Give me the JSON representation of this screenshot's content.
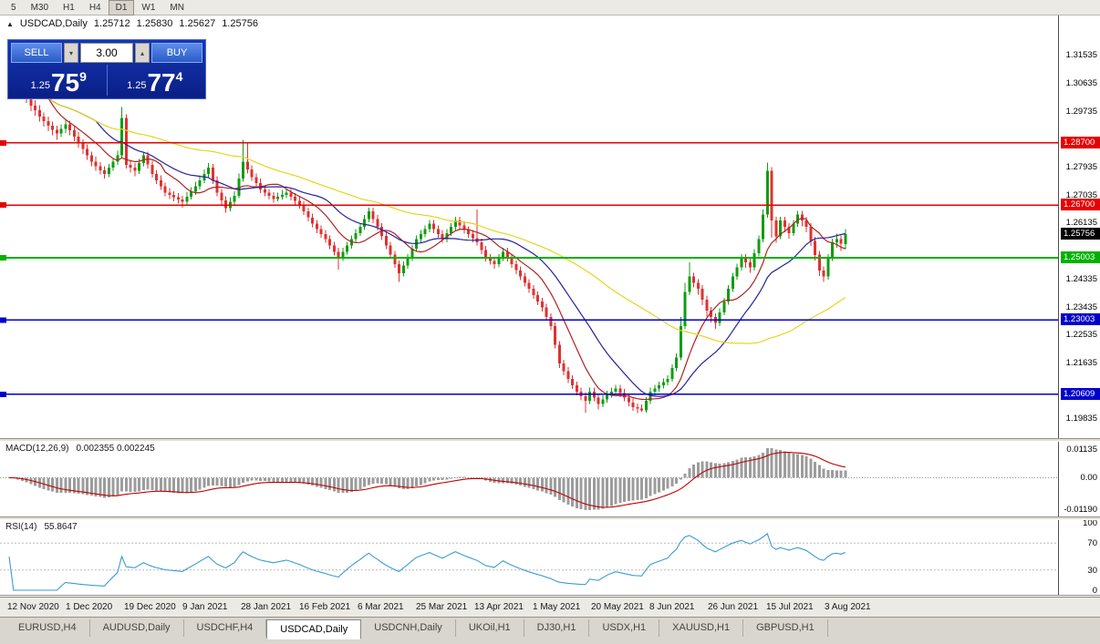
{
  "toolbar": {
    "periods": [
      "5",
      "M30",
      "H1",
      "H4",
      "D1",
      "W1",
      "MN"
    ],
    "active": "D1"
  },
  "chart": {
    "symbol_title": "USDCAD,Daily",
    "ohlc": {
      "open": "1.25712",
      "high": "1.25830",
      "low": "1.25627",
      "close": "1.25756"
    }
  },
  "trade_panel": {
    "sell_label": "SELL",
    "buy_label": "BUY",
    "volume": "3.00",
    "bid": {
      "prefix": "1.25",
      "big": "75",
      "sup": "9"
    },
    "ask": {
      "prefix": "1.25",
      "big": "77",
      "sup": "4"
    }
  },
  "chart_data": {
    "type": "candlestick",
    "symbol": "USDCAD",
    "timeframe": "Daily",
    "bull_color": "#119c11",
    "bear_color": "#e03131",
    "price_axis": {
      "top": 1.328,
      "bottom": 1.192,
      "ticks": [
        "1.31535",
        "1.30635",
        "1.29735",
        "1.27935",
        "1.27035",
        "1.26135",
        "1.24335",
        "1.23435",
        "1.22535",
        "1.21635",
        "1.19835"
      ]
    },
    "levels": [
      {
        "price": 1.287,
        "label": "1.28700",
        "color": "#e60000"
      },
      {
        "price": 1.267,
        "label": "1.26700",
        "color": "#e60000"
      },
      {
        "price": 1.25003,
        "label": "1.25003",
        "color": "#00b200"
      },
      {
        "price": 1.23003,
        "label": "1.23003",
        "color": "#0000cc"
      },
      {
        "price": 1.20609,
        "label": "1.20609",
        "color": "#0000cc"
      }
    ],
    "current_price": {
      "price": 1.25756,
      "label": "1.25756",
      "color": "#000000"
    },
    "moving_averages": [
      {
        "period": 10,
        "color": "#b22222"
      },
      {
        "period": 21,
        "color": "#22229c"
      },
      {
        "period": 55,
        "color": "#e8d320"
      }
    ],
    "x_axis_labels": [
      "12 Nov 2020",
      "1 Dec 2020",
      "19 Dec 2020",
      "9 Jan 2021",
      "28 Jan 2021",
      "16 Feb 2021",
      "6 Mar 2021",
      "25 Mar 2021",
      "13 Apr 2021",
      "1 May 2021",
      "20 May 2021",
      "8 Jun 2021",
      "26 Jun 2021",
      "15 Jul 2021",
      "3 Aug 2021"
    ],
    "indicators": {
      "macd": {
        "name": "MACD(12,26,9)",
        "values": "0.002355 0.002245",
        "fast": 12,
        "slow": 26,
        "signal": 9,
        "axis_labels": {
          "max": "0.01135",
          "zero": "0.00",
          "min": "-0.01190"
        },
        "histogram_color": "#9c9c9c",
        "signal_color": "#c00000"
      },
      "rsi": {
        "name": "RSI(14)",
        "value": "55.8647",
        "period": 14,
        "axis_labels": [
          "100",
          "70",
          "30",
          "0"
        ],
        "levels": [
          70,
          30
        ],
        "line_color": "#3d9bd5"
      }
    },
    "candles": [
      [
        1.3155,
        1.3172,
        1.3112,
        1.313
      ],
      [
        1.313,
        1.3148,
        1.3082,
        1.31
      ],
      [
        1.31,
        1.3112,
        1.3052,
        1.307
      ],
      [
        1.307,
        1.3085,
        1.3028,
        1.3045
      ],
      [
        1.3045,
        1.3058,
        1.2998,
        1.3015
      ],
      [
        1.3015,
        1.303,
        1.2972,
        1.299
      ],
      [
        1.299,
        1.3008,
        1.2958,
        1.2975
      ],
      [
        1.2975,
        1.2992,
        1.2938,
        1.2955
      ],
      [
        1.2955,
        1.2968,
        1.2922,
        1.294
      ],
      [
        1.294,
        1.2955,
        1.2908,
        1.2925
      ],
      [
        1.2925,
        1.2938,
        1.2895,
        1.2912
      ],
      [
        1.2912,
        1.2925,
        1.288,
        1.29
      ],
      [
        1.29,
        1.293,
        1.2888,
        1.2915
      ],
      [
        1.2915,
        1.2945,
        1.2902,
        1.293
      ],
      [
        1.293,
        1.2942,
        1.2895,
        1.291
      ],
      [
        1.291,
        1.2922,
        1.2875,
        1.289
      ],
      [
        1.289,
        1.2905,
        1.2855,
        1.287
      ],
      [
        1.287,
        1.2882,
        1.2835,
        1.285
      ],
      [
        1.285,
        1.2865,
        1.2815,
        1.283
      ],
      [
        1.283,
        1.2842,
        1.2795,
        1.281
      ],
      [
        1.281,
        1.2825,
        1.278,
        1.2795
      ],
      [
        1.2795,
        1.2808,
        1.2768,
        1.2782
      ],
      [
        1.2782,
        1.2795,
        1.2755,
        1.277
      ],
      [
        1.277,
        1.2802,
        1.276,
        1.279
      ],
      [
        1.279,
        1.2822,
        1.278,
        1.281
      ],
      [
        1.281,
        1.2845,
        1.28,
        1.283
      ],
      [
        1.283,
        1.2985,
        1.282,
        1.295
      ],
      [
        1.295,
        1.2962,
        1.2788,
        1.28
      ],
      [
        1.28,
        1.2815,
        1.2775,
        1.279
      ],
      [
        1.279,
        1.2805,
        1.2762,
        1.278
      ],
      [
        1.278,
        1.2818,
        1.277,
        1.2805
      ],
      [
        1.2805,
        1.2842,
        1.2795,
        1.283
      ],
      [
        1.283,
        1.2842,
        1.2788,
        1.28
      ],
      [
        1.28,
        1.2812,
        1.2758,
        1.277
      ],
      [
        1.277,
        1.2782,
        1.2738,
        1.275
      ],
      [
        1.275,
        1.2765,
        1.2718,
        1.273
      ],
      [
        1.273,
        1.2742,
        1.2698,
        1.271
      ],
      [
        1.271,
        1.2725,
        1.269,
        1.2702
      ],
      [
        1.2702,
        1.2715,
        1.2682,
        1.2695
      ],
      [
        1.2695,
        1.2708,
        1.2675,
        1.2688
      ],
      [
        1.2688,
        1.27,
        1.2662,
        1.268
      ],
      [
        1.268,
        1.2712,
        1.267,
        1.2697
      ],
      [
        1.2697,
        1.2728,
        1.2688,
        1.2713
      ],
      [
        1.2713,
        1.2745,
        1.2702,
        1.273
      ],
      [
        1.273,
        1.2765,
        1.272,
        1.275
      ],
      [
        1.275,
        1.2785,
        1.274,
        1.277
      ],
      [
        1.277,
        1.2805,
        1.276,
        1.279
      ],
      [
        1.279,
        1.2802,
        1.2738,
        1.275
      ],
      [
        1.275,
        1.2762,
        1.2698,
        1.271
      ],
      [
        1.271,
        1.2722,
        1.2672,
        1.2685
      ],
      [
        1.2685,
        1.2698,
        1.2645,
        1.266
      ],
      [
        1.266,
        1.2695,
        1.265,
        1.268
      ],
      [
        1.268,
        1.2715,
        1.267,
        1.27
      ],
      [
        1.27,
        1.2772,
        1.2692,
        1.2755
      ],
      [
        1.2755,
        1.288,
        1.2745,
        1.281
      ],
      [
        1.281,
        1.2868,
        1.2772,
        1.2785
      ],
      [
        1.2785,
        1.2798,
        1.2748,
        1.276
      ],
      [
        1.276,
        1.2772,
        1.2728,
        1.274
      ],
      [
        1.274,
        1.2755,
        1.2708,
        1.272
      ],
      [
        1.272,
        1.2732,
        1.2698,
        1.271
      ],
      [
        1.271,
        1.2722,
        1.2688,
        1.27
      ],
      [
        1.27,
        1.2712,
        1.2678,
        1.269
      ],
      [
        1.269,
        1.271,
        1.2682,
        1.2697
      ],
      [
        1.2697,
        1.2718,
        1.2688,
        1.2703
      ],
      [
        1.2703,
        1.2722,
        1.2692,
        1.271
      ],
      [
        1.271,
        1.2722,
        1.2685,
        1.2697
      ],
      [
        1.2697,
        1.2708,
        1.2672,
        1.2683
      ],
      [
        1.2683,
        1.2695,
        1.2658,
        1.267
      ],
      [
        1.267,
        1.2682,
        1.2638,
        1.265
      ],
      [
        1.265,
        1.2662,
        1.2618,
        1.263
      ],
      [
        1.263,
        1.2642,
        1.2598,
        1.261
      ],
      [
        1.261,
        1.2622,
        1.258,
        1.2593
      ],
      [
        1.2593,
        1.2605,
        1.2565,
        1.2577
      ],
      [
        1.2577,
        1.259,
        1.2548,
        1.256
      ],
      [
        1.256,
        1.2572,
        1.2528,
        1.254
      ],
      [
        1.254,
        1.2552,
        1.2508,
        1.252
      ],
      [
        1.252,
        1.2532,
        1.2462,
        1.25
      ],
      [
        1.25,
        1.2532,
        1.249,
        1.252
      ],
      [
        1.252,
        1.2552,
        1.251,
        1.254
      ],
      [
        1.254,
        1.2572,
        1.253,
        1.256
      ],
      [
        1.256,
        1.2592,
        1.255,
        1.258
      ],
      [
        1.258,
        1.2612,
        1.257,
        1.26
      ],
      [
        1.26,
        1.2638,
        1.259,
        1.2625
      ],
      [
        1.2625,
        1.2662,
        1.2615,
        1.265
      ],
      [
        1.265,
        1.2662,
        1.2612,
        1.2625
      ],
      [
        1.2625,
        1.2638,
        1.2588,
        1.26
      ],
      [
        1.26,
        1.2612,
        1.2558,
        1.257
      ],
      [
        1.257,
        1.2582,
        1.2528,
        1.254
      ],
      [
        1.254,
        1.2552,
        1.2498,
        1.251
      ],
      [
        1.251,
        1.2522,
        1.2468,
        1.248
      ],
      [
        1.248,
        1.2492,
        1.2422,
        1.245
      ],
      [
        1.245,
        1.2488,
        1.244,
        1.2475
      ],
      [
        1.2475,
        1.2512,
        1.2465,
        1.25
      ],
      [
        1.25,
        1.2542,
        1.249,
        1.253
      ],
      [
        1.253,
        1.2572,
        1.252,
        1.256
      ],
      [
        1.256,
        1.259,
        1.255,
        1.2577
      ],
      [
        1.2577,
        1.2605,
        1.2567,
        1.2593
      ],
      [
        1.2593,
        1.2622,
        1.2583,
        1.261
      ],
      [
        1.261,
        1.2622,
        1.258,
        1.2593
      ],
      [
        1.2593,
        1.2605,
        1.2565,
        1.2577
      ],
      [
        1.2577,
        1.259,
        1.2548,
        1.256
      ],
      [
        1.256,
        1.2592,
        1.255,
        1.258
      ],
      [
        1.258,
        1.2612,
        1.257,
        1.26
      ],
      [
        1.26,
        1.2632,
        1.259,
        1.262
      ],
      [
        1.262,
        1.2632,
        1.2592,
        1.2605
      ],
      [
        1.2605,
        1.2618,
        1.2578,
        1.259
      ],
      [
        1.259,
        1.2602,
        1.2565,
        1.2577
      ],
      [
        1.2577,
        1.259,
        1.255,
        1.2563
      ],
      [
        1.2563,
        1.2655,
        1.254,
        1.255
      ],
      [
        1.255,
        1.2562,
        1.2512,
        1.2525
      ],
      [
        1.2525,
        1.2538,
        1.2488,
        1.25
      ],
      [
        1.25,
        1.2512,
        1.2478,
        1.249
      ],
      [
        1.249,
        1.2502,
        1.2465,
        1.248
      ],
      [
        1.248,
        1.2512,
        1.247,
        1.25
      ],
      [
        1.25,
        1.2532,
        1.249,
        1.252
      ],
      [
        1.252,
        1.2532,
        1.2488,
        1.25
      ],
      [
        1.25,
        1.2512,
        1.2468,
        1.248
      ],
      [
        1.248,
        1.2492,
        1.2448,
        1.246
      ],
      [
        1.246,
        1.2472,
        1.2428,
        1.244
      ],
      [
        1.244,
        1.2452,
        1.2408,
        1.242
      ],
      [
        1.242,
        1.2432,
        1.2388,
        1.24
      ],
      [
        1.24,
        1.2412,
        1.2368,
        1.238
      ],
      [
        1.238,
        1.2392,
        1.2348,
        1.236
      ],
      [
        1.236,
        1.2372,
        1.2328,
        1.234
      ],
      [
        1.234,
        1.2352,
        1.2298,
        1.231
      ],
      [
        1.231,
        1.2322,
        1.2268,
        1.228
      ],
      [
        1.228,
        1.2292,
        1.2208,
        1.222
      ],
      [
        1.222,
        1.2232,
        1.2145,
        1.216
      ],
      [
        1.216,
        1.2172,
        1.2122,
        1.2135
      ],
      [
        1.2135,
        1.2148,
        1.2098,
        1.211
      ],
      [
        1.211,
        1.2122,
        1.2078,
        1.209
      ],
      [
        1.209,
        1.2102,
        1.2058,
        1.207
      ],
      [
        1.207,
        1.2082,
        1.2042,
        1.2055
      ],
      [
        1.2055,
        1.2068,
        1.2002,
        1.204
      ],
      [
        1.204,
        1.2082,
        1.203,
        1.207
      ],
      [
        1.207,
        1.2082,
        1.2038,
        1.205
      ],
      [
        1.205,
        1.2062,
        1.2012,
        1.203
      ],
      [
        1.203,
        1.2058,
        1.202,
        1.2045
      ],
      [
        1.2045,
        1.2072,
        1.2035,
        1.206
      ],
      [
        1.206,
        1.2082,
        1.205,
        1.207
      ],
      [
        1.207,
        1.2092,
        1.206,
        1.208
      ],
      [
        1.208,
        1.2092,
        1.2052,
        1.2065
      ],
      [
        1.2065,
        1.2078,
        1.2038,
        1.205
      ],
      [
        1.205,
        1.2062,
        1.2022,
        1.2035
      ],
      [
        1.2035,
        1.2048,
        1.2008,
        1.202
      ],
      [
        1.202,
        1.2032,
        1.2,
        1.2015
      ],
      [
        1.2015,
        1.2028,
        1.2005,
        1.201
      ],
      [
        1.201,
        1.2052,
        1.2002,
        1.204
      ],
      [
        1.204,
        1.2082,
        1.203,
        1.207
      ],
      [
        1.207,
        1.2092,
        1.2058,
        1.208
      ],
      [
        1.208,
        1.2102,
        1.207,
        1.209
      ],
      [
        1.209,
        1.2112,
        1.208,
        1.21
      ],
      [
        1.21,
        1.2122,
        1.209,
        1.211
      ],
      [
        1.211,
        1.2158,
        1.2102,
        1.2145
      ],
      [
        1.2145,
        1.2192,
        1.2135,
        1.218
      ],
      [
        1.218,
        1.231,
        1.217,
        1.228
      ],
      [
        1.228,
        1.242,
        1.227,
        1.239
      ],
      [
        1.239,
        1.2485,
        1.238,
        1.244
      ],
      [
        1.244,
        1.2452,
        1.2405,
        1.242
      ],
      [
        1.242,
        1.2432,
        1.2382,
        1.24
      ],
      [
        1.24,
        1.2412,
        1.2348,
        1.2365
      ],
      [
        1.2365,
        1.2378,
        1.2312,
        1.233
      ],
      [
        1.233,
        1.2342,
        1.2292,
        1.231
      ],
      [
        1.231,
        1.2322,
        1.2272,
        1.229
      ],
      [
        1.229,
        1.2338,
        1.228,
        1.2325
      ],
      [
        1.2325,
        1.2372,
        1.2315,
        1.236
      ],
      [
        1.236,
        1.2412,
        1.235,
        1.24
      ],
      [
        1.24,
        1.2452,
        1.239,
        1.244
      ],
      [
        1.244,
        1.2482,
        1.243,
        1.247
      ],
      [
        1.247,
        1.2512,
        1.246,
        1.25
      ],
      [
        1.25,
        1.2512,
        1.2468,
        1.2485
      ],
      [
        1.2485,
        1.2498,
        1.2452,
        1.247
      ],
      [
        1.247,
        1.2528,
        1.246,
        1.2515
      ],
      [
        1.2515,
        1.2572,
        1.2505,
        1.256
      ],
      [
        1.256,
        1.2655,
        1.255,
        1.264
      ],
      [
        1.264,
        1.2807,
        1.263,
        1.278
      ],
      [
        1.278,
        1.2792,
        1.2565,
        1.262
      ],
      [
        1.262,
        1.2632,
        1.2548,
        1.257
      ],
      [
        1.257,
        1.2632,
        1.256,
        1.262
      ],
      [
        1.262,
        1.2632,
        1.2582,
        1.26
      ],
      [
        1.26,
        1.2612,
        1.2562,
        1.258
      ],
      [
        1.258,
        1.2622,
        1.257,
        1.261
      ],
      [
        1.261,
        1.2652,
        1.26,
        1.264
      ],
      [
        1.264,
        1.2652,
        1.2602,
        1.262
      ],
      [
        1.262,
        1.2632,
        1.2582,
        1.26
      ],
      [
        1.26,
        1.2612,
        1.2538,
        1.2555
      ],
      [
        1.2555,
        1.2568,
        1.2492,
        1.251
      ],
      [
        1.251,
        1.2522,
        1.2442,
        1.246
      ],
      [
        1.246,
        1.2472,
        1.2422,
        1.244
      ],
      [
        1.244,
        1.2512,
        1.243,
        1.25
      ],
      [
        1.25,
        1.2562,
        1.249,
        1.255
      ],
      [
        1.255,
        1.2578,
        1.2532,
        1.256
      ],
      [
        1.256,
        1.2572,
        1.2522,
        1.2545
      ],
      [
        1.2545,
        1.2592,
        1.2528,
        1.2576
      ]
    ]
  },
  "tabs": {
    "items": [
      "EURUSD,H4",
      "AUDUSD,Daily",
      "USDCHF,H4",
      "USDCAD,Daily",
      "USDCNH,Daily",
      "UKOil,H1",
      "DJ30,H1",
      "USDX,H1",
      "XAUUSD,H1",
      "GBPUSD,H1"
    ],
    "active_index": 3
  }
}
